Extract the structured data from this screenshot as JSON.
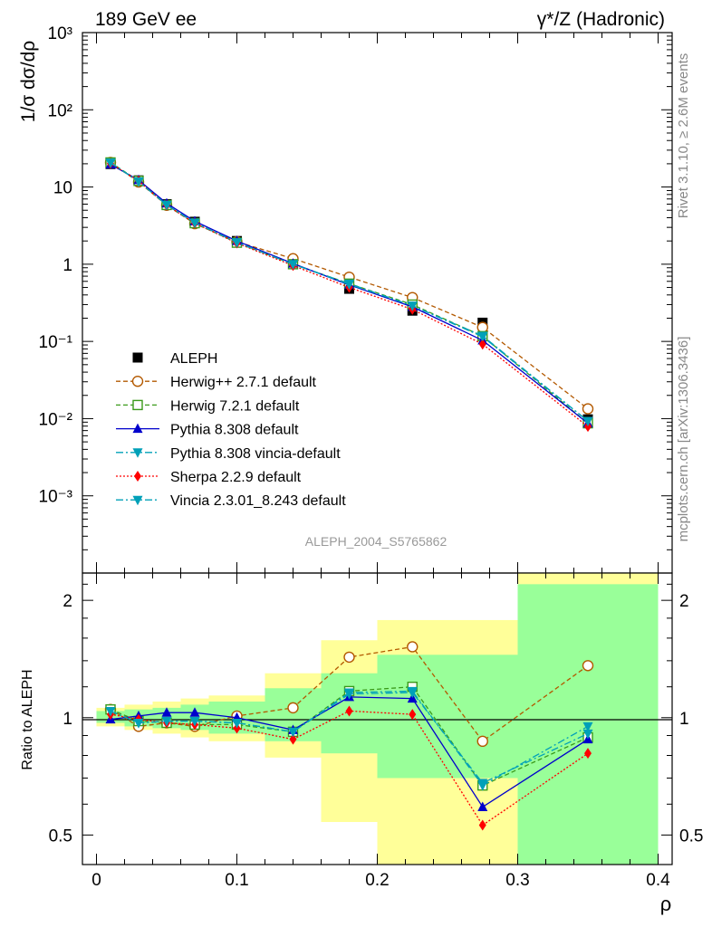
{
  "header": {
    "left_label": "189 GeV ee",
    "right_label": "γ*/Z (Hadronic)"
  },
  "side_labels": {
    "rivet": "Rivet 3.1.10, ≥ 2.6M events",
    "mcplots": "mcplots.cern.ch [arXiv:1306.3436]"
  },
  "analysis_label": "ALEPH_2004_S5765862",
  "main_ylabel": "1/σ  dσ/dρ",
  "ratio_ylabel": "Ratio to ALEPH",
  "xlabel": "ρ",
  "top_tick_labels": [
    "10³",
    "10²",
    "10",
    "1",
    "10⁻¹",
    "10⁻²",
    "10⁻³"
  ],
  "ratio_tick_labels": [
    "0.5",
    "1",
    "2"
  ],
  "x_tick_labels": [
    "0",
    "0.1",
    "0.2",
    "0.3",
    "0.4"
  ],
  "chart_data": [
    {
      "type": "scatter",
      "panel": "main",
      "x_scale": "linear",
      "y_scale": "log",
      "xlim": [
        -0.01,
        0.41
      ],
      "ylim": [
        0.0001,
        1000
      ],
      "x": [
        0.01,
        0.03,
        0.05,
        0.07,
        0.1,
        0.14,
        0.18,
        0.225,
        0.275,
        0.35
      ],
      "bin_edges": [
        0.0,
        0.02,
        0.04,
        0.06,
        0.08,
        0.12,
        0.16,
        0.2,
        0.25,
        0.3,
        0.4
      ],
      "series": [
        {
          "name": "ALEPH",
          "color": "#000000",
          "style": "data",
          "values": [
            19.8,
            12.2,
            6.0,
            3.55,
            2.0,
            1.1,
            0.48,
            0.25,
            0.175,
            0.0098
          ]
        },
        {
          "name": "Herwig++ 2.7.1 default",
          "color": "#b35900",
          "dash": "5,3",
          "marker": "circle-open",
          "values": [
            20.8,
            11.6,
            5.8,
            3.35,
            1.95,
            1.18,
            0.68,
            0.37,
            0.152,
            0.0134
          ]
        },
        {
          "name": "Herwig 7.2.1 default",
          "color": "#3a9a1a",
          "dash": "5,3",
          "marker": "square-open",
          "values": [
            20.8,
            12.0,
            5.85,
            3.4,
            1.9,
            1.0,
            0.56,
            0.3,
            0.117,
            0.0087
          ]
        },
        {
          "name": "Pythia 8.308 default",
          "color": "#0000cc",
          "dash": "",
          "marker": "triangle-up",
          "values": [
            19.6,
            12.3,
            6.15,
            3.6,
            2.0,
            1.02,
            0.54,
            0.28,
            0.103,
            0.0087
          ]
        },
        {
          "name": "Pythia 8.308 vincia-default",
          "color": "#00a0b8",
          "dash": "8,3,2,3",
          "marker": "triangle-down",
          "values": [
            20.6,
            11.8,
            5.85,
            3.45,
            1.92,
            1.0,
            0.56,
            0.29,
            0.115,
            0.0093
          ]
        },
        {
          "name": "Sherpa 2.2.9 default",
          "color": "#ff0000",
          "dash": "2,2",
          "marker": "diamond",
          "values": [
            20.2,
            12.0,
            5.8,
            3.4,
            1.88,
            0.96,
            0.5,
            0.26,
            0.092,
            0.0079
          ]
        },
        {
          "name": "Vincia 2.3.01_8.243 default",
          "color": "#00a0b8",
          "dash": "8,3,2,3",
          "marker": "triangle-down",
          "values": [
            20.6,
            11.8,
            5.85,
            3.45,
            1.92,
            1.0,
            0.55,
            0.29,
            0.118,
            0.0093
          ]
        }
      ]
    },
    {
      "type": "line",
      "panel": "ratio",
      "x_scale": "linear",
      "y_scale": "log",
      "xlim": [
        -0.01,
        0.41
      ],
      "ylim": [
        0.42,
        2.35
      ],
      "x": [
        0.01,
        0.03,
        0.05,
        0.07,
        0.1,
        0.14,
        0.18,
        0.225,
        0.275,
        0.35
      ],
      "bands": [
        {
          "name": "total uncertainty",
          "color": "#ffff99",
          "edges": [
            0.0,
            0.02,
            0.04,
            0.06,
            0.08,
            0.12,
            0.16,
            0.2,
            0.25,
            0.3,
            0.4
          ],
          "lower": [
            0.95,
            0.93,
            0.91,
            0.89,
            0.87,
            0.79,
            0.54,
            0.42,
            0.42,
            0.42
          ],
          "upper": [
            1.06,
            1.08,
            1.1,
            1.12,
            1.14,
            1.3,
            1.58,
            1.78,
            1.78,
            2.35
          ]
        },
        {
          "name": "statistical uncertainty",
          "color": "#99ff99",
          "edges": [
            0.0,
            0.02,
            0.04,
            0.06,
            0.08,
            0.12,
            0.16,
            0.2,
            0.25,
            0.3,
            0.4
          ],
          "lower": [
            0.97,
            0.95,
            0.94,
            0.93,
            0.91,
            0.87,
            0.81,
            0.7,
            0.7,
            0.42
          ],
          "upper": [
            1.04,
            1.05,
            1.06,
            1.08,
            1.1,
            1.19,
            1.3,
            1.45,
            1.45,
            2.2
          ]
        }
      ],
      "series": [
        {
          "name": "Herwig++ 2.7.1 default",
          "color": "#b35900",
          "dash": "5,3",
          "marker": "circle-open",
          "values": [
            1.05,
            0.95,
            0.97,
            0.95,
            1.01,
            1.06,
            1.43,
            1.52,
            0.87,
            1.36
          ]
        },
        {
          "name": "Herwig 7.2.1 default",
          "color": "#3a9a1a",
          "dash": "5,3",
          "marker": "square-open",
          "values": [
            1.05,
            0.98,
            0.97,
            0.96,
            0.96,
            0.92,
            1.17,
            1.2,
            0.67,
            0.89
          ]
        },
        {
          "name": "Pythia 8.308 default",
          "color": "#0000cc",
          "dash": "",
          "marker": "triangle-up",
          "values": [
            0.99,
            1.01,
            1.03,
            1.03,
            1.0,
            0.93,
            1.13,
            1.12,
            0.59,
            0.88
          ]
        },
        {
          "name": "Pythia 8.308 vincia-default",
          "color": "#00a0b8",
          "dash": "8,3,2,3",
          "marker": "triangle-down",
          "values": [
            1.04,
            0.97,
            0.98,
            0.98,
            0.97,
            0.92,
            1.16,
            1.17,
            0.67,
            0.95
          ]
        },
        {
          "name": "Sherpa 2.2.9 default",
          "color": "#ff0000",
          "dash": "2,2",
          "marker": "diamond",
          "values": [
            1.02,
            0.99,
            0.97,
            0.96,
            0.94,
            0.88,
            1.04,
            1.02,
            0.53,
            0.81
          ]
        },
        {
          "name": "Vincia 2.3.01_8.243 default",
          "color": "#00a0b8",
          "dash": "8,3,2,3",
          "marker": "triangle-down",
          "values": [
            1.04,
            0.97,
            0.98,
            0.98,
            0.97,
            0.92,
            1.15,
            1.16,
            0.68,
            0.91
          ]
        }
      ]
    }
  ]
}
